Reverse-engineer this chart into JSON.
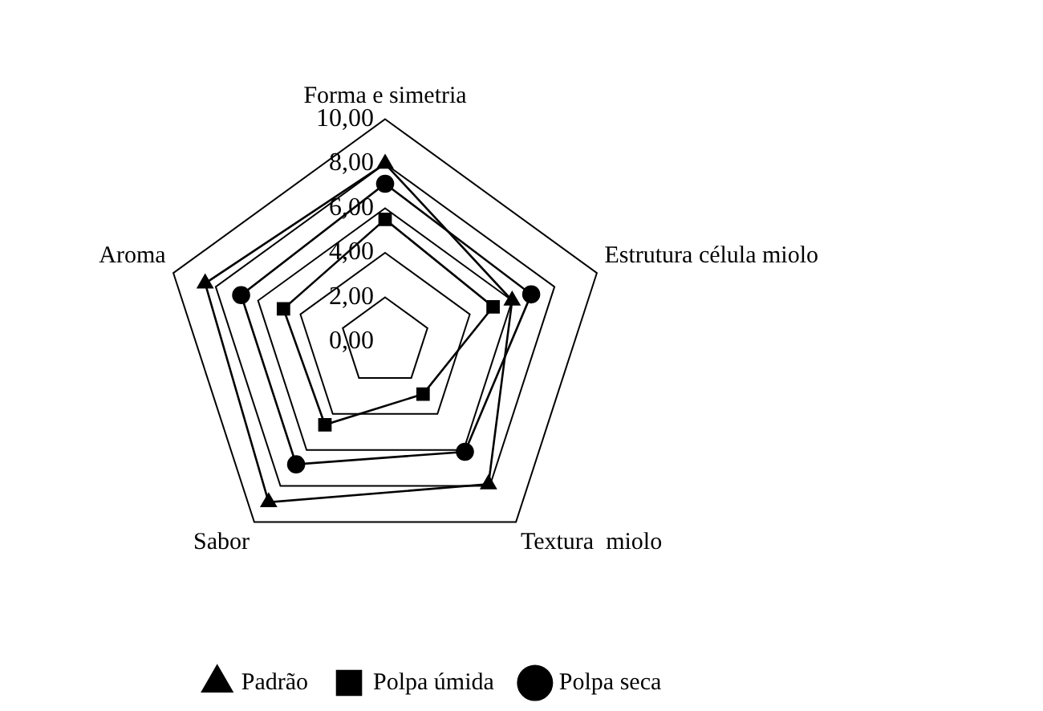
{
  "chart_data": {
    "type": "radar",
    "categories": [
      "Forma e simetria",
      "Estrutura célula miolo",
      "Textura  miolo",
      "Sabor",
      "Aroma"
    ],
    "ylim": [
      0,
      10
    ],
    "yticks": [
      {
        "value": 0,
        "label": "0,00"
      },
      {
        "value": 2,
        "label": "2,00"
      },
      {
        "value": 4,
        "label": "4,00"
      },
      {
        "value": 6,
        "label": "6,00"
      },
      {
        "value": 8,
        "label": "8,00"
      },
      {
        "value": 10,
        "label": "10,00"
      }
    ],
    "grid": true,
    "legend": "bottom",
    "series": [
      {
        "name": "Padrão",
        "color": "#000000",
        "marker": "triangle",
        "values": [
          8.0,
          6.0,
          7.9,
          8.9,
          8.5
        ]
      },
      {
        "name": "Polpa úmida",
        "color": "#000000",
        "marker": "square",
        "values": [
          5.5,
          5.1,
          2.9,
          4.6,
          4.8
        ]
      },
      {
        "name": "Polpa seca",
        "color": "#000000",
        "marker": "circle",
        "values": [
          7.1,
          6.9,
          6.1,
          6.8,
          6.8
        ]
      }
    ]
  }
}
